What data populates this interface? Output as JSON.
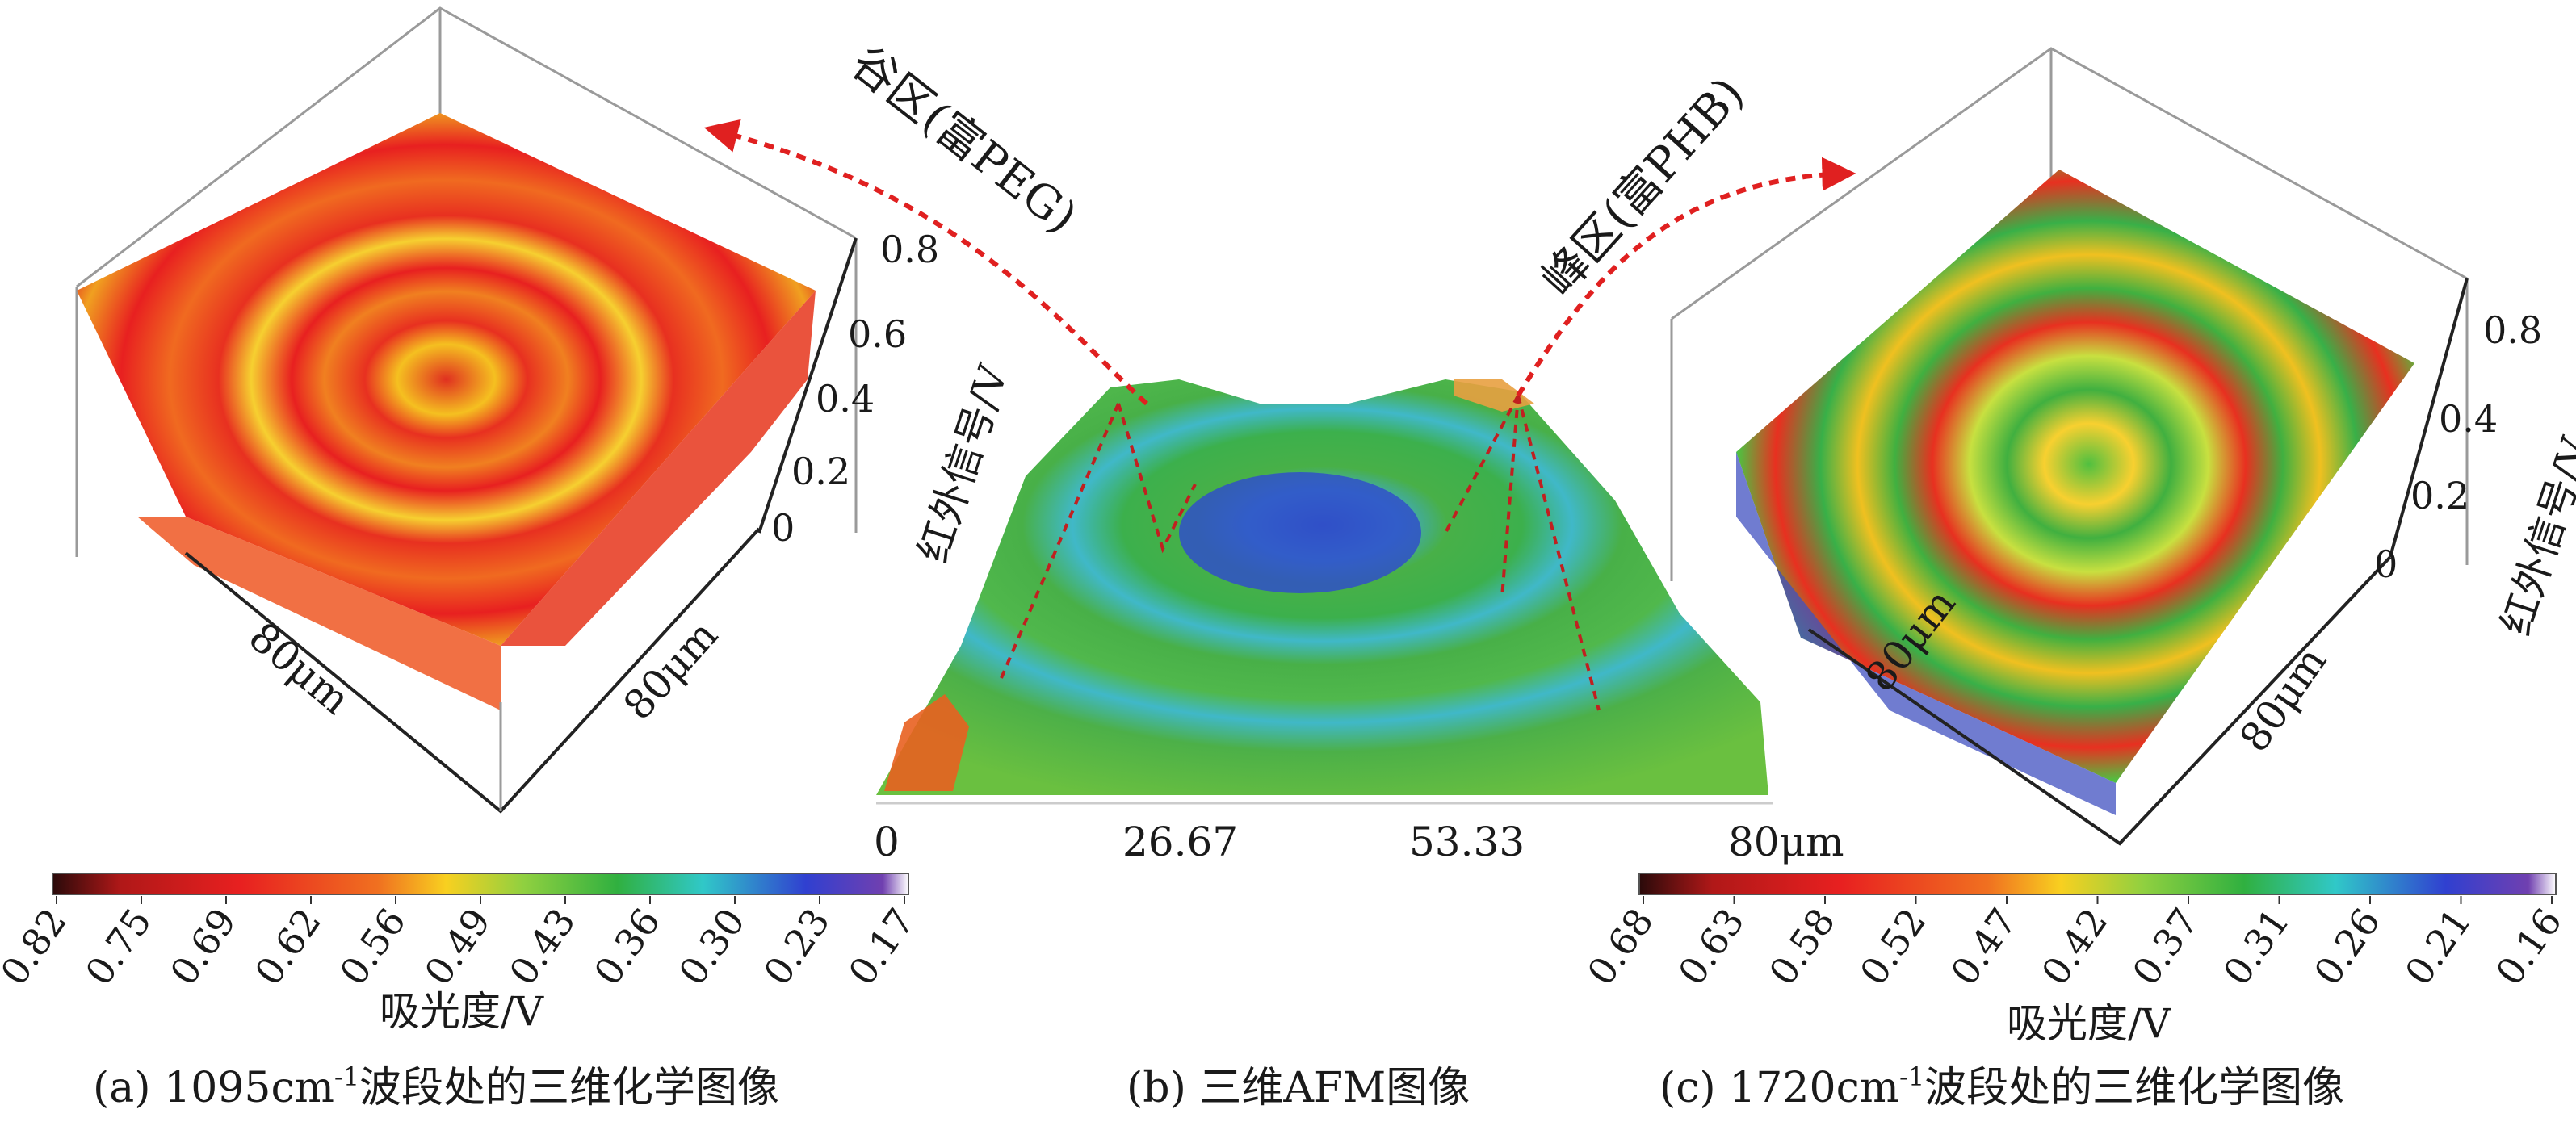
{
  "colorbar_stops": [
    "#2a0a0a",
    "#e02020",
    "#f06020",
    "#f8c020",
    "#c8e040",
    "#40b040",
    "#30c8c8",
    "#3050d8",
    "#8040c0",
    "#ffffff"
  ],
  "panels": [
    {
      "id": "a",
      "caption_pre": "(a) 1095cm",
      "caption_sup": "-1",
      "caption_post": "波段处的三维化学图像",
      "z_axis_label": "红外信号/V",
      "z_ticks": [
        "0.8",
        "0.6",
        "0.4",
        "0.2",
        "0"
      ],
      "x_label": "80μm",
      "y_label": "80μm",
      "colorbar_ticks": [
        "0.82",
        "0.75",
        "0.69",
        "0.62",
        "0.56",
        "0.49",
        "0.43",
        "0.36",
        "0.30",
        "0.23",
        "0.17"
      ],
      "colorbar_label": "吸光度/V"
    },
    {
      "id": "b",
      "caption": "(b) 三维AFM图像",
      "x_ticks": [
        "0",
        "26.67",
        "53.33",
        "80μm"
      ],
      "annotation_valley": "谷区(富PEG)",
      "annotation_peak": "峰区(富PHB)"
    },
    {
      "id": "c",
      "caption_pre": "(c) 1720cm",
      "caption_sup": "-1",
      "caption_post": "波段处的三维化学图像",
      "z_axis_label": "红外信号/V",
      "z_ticks": [
        "0.8",
        "0.4",
        "0.2",
        "0"
      ],
      "x_label": "80μm",
      "y_label": "80μm",
      "colorbar_ticks": [
        "0.68",
        "0.63",
        "0.58",
        "0.52",
        "0.47",
        "0.42",
        "0.37",
        "0.31",
        "0.26",
        "0.21",
        "0.16"
      ],
      "colorbar_label": "吸光度/V"
    }
  ]
}
